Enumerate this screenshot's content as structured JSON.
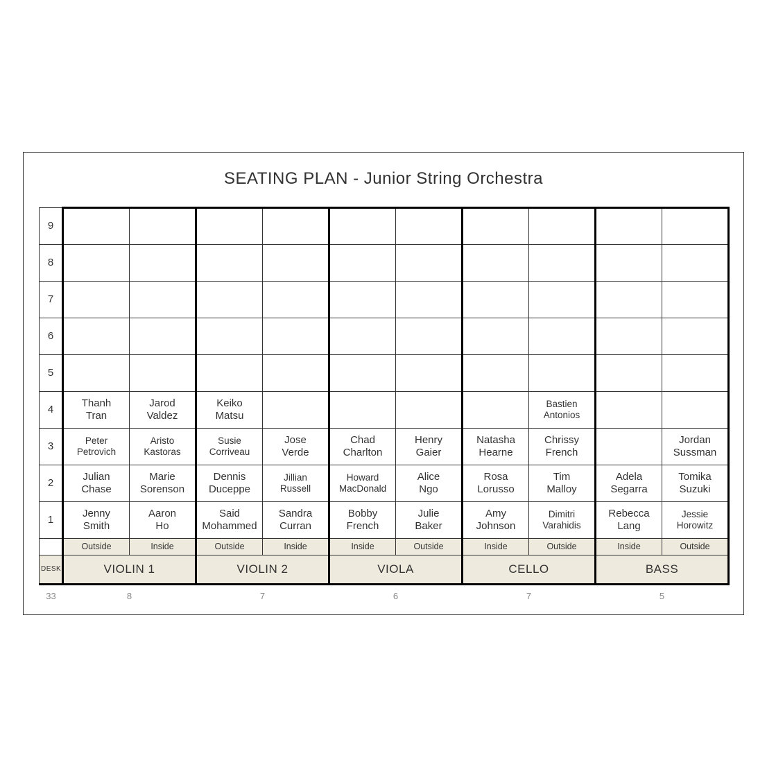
{
  "title": "SEATING PLAN - Junior String Orchestra",
  "row_labels": [
    "9",
    "8",
    "7",
    "6",
    "5",
    "4",
    "3",
    "2",
    "1"
  ],
  "desk_label": "DESK",
  "positions": [
    "Outside",
    "Inside",
    "Outside",
    "Inside",
    "Inside",
    "Outside",
    "Inside",
    "Outside",
    "Inside",
    "Outside"
  ],
  "sections": [
    "VIOLIN 1",
    "VIOLIN 2",
    "VIOLA",
    "CELLO",
    "BASS"
  ],
  "counts_left": "33",
  "counts": [
    "8",
    "7",
    "6",
    "7",
    "5"
  ],
  "colors": {
    "header_bg": "#eeeadd",
    "border": "#333333",
    "count_text": "#888888",
    "page_bg": "#ffffff"
  },
  "grid": [
    [
      "",
      "",
      "",
      "",
      "",
      "",
      "",
      "",
      "",
      ""
    ],
    [
      "",
      "",
      "",
      "",
      "",
      "",
      "",
      "",
      "",
      ""
    ],
    [
      "",
      "",
      "",
      "",
      "",
      "",
      "",
      "",
      "",
      ""
    ],
    [
      "",
      "",
      "",
      "",
      "",
      "",
      "",
      "",
      "",
      ""
    ],
    [
      "",
      "",
      "",
      "",
      "",
      "",
      "",
      "",
      "",
      ""
    ],
    [
      "Thanh Tran",
      "Jarod Valdez",
      "Keiko Matsu",
      "",
      "",
      "",
      "",
      "Bastien Antonios",
      "",
      ""
    ],
    [
      "Peter Petrovich",
      "Aristo Kastoras",
      "Susie Corriveau",
      "Jose Verde",
      "Chad Charlton",
      "Henry Gaier",
      "Natasha Hearne",
      "Chrissy French",
      "",
      "Jordan Sussman"
    ],
    [
      "Julian Chase",
      "Marie Sorenson",
      "Dennis Duceppe",
      "Jillian Russell",
      "Howard MacDonald",
      "Alice Ngo",
      "Rosa Lorusso",
      "Tim Malloy",
      "Adela Segarra",
      "Tomika Suzuki"
    ],
    [
      "Jenny Smith",
      "Aaron Ho",
      "Said Mohammed",
      "Sandra Curran",
      "Bobby French",
      "Julie Baker",
      "Amy Johnson",
      "Dimitri Varahidis",
      "Rebecca Lang",
      "Jessie Horowitz"
    ]
  ]
}
